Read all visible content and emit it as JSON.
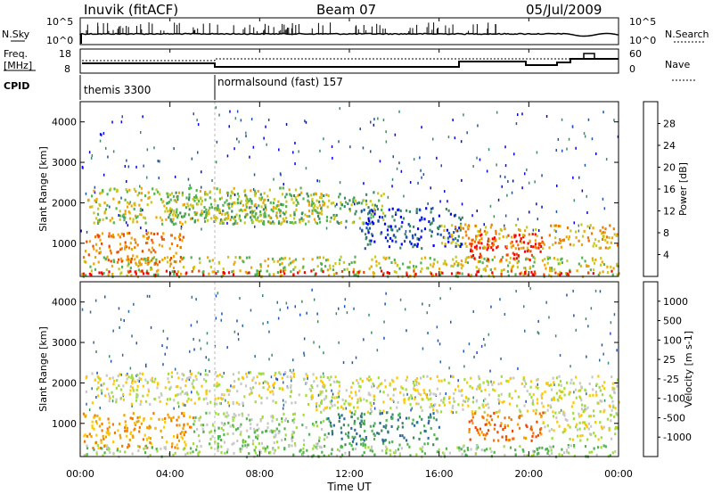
{
  "header": {
    "station": "Inuvik (fitACF)",
    "beam": "Beam 07",
    "date": "05/Jul/2009"
  },
  "strips": {
    "nsky": {
      "label": "N.Sky",
      "ticks": [
        "10^5",
        "10^0"
      ]
    },
    "nsearch": {
      "label": "N.Search",
      "ticks": [
        "10^5",
        "10^0"
      ]
    },
    "freq": {
      "label_top": "Freq.",
      "label_bottom": "[MHz]",
      "ticks": [
        "18",
        "8"
      ]
    },
    "nave": {
      "label": "Nave",
      "ticks": [
        "60",
        "0"
      ]
    },
    "cpid": {
      "label": "CPID",
      "modes": [
        "themis 3300",
        "normalsound (fast) 157"
      ],
      "mode_change_hour": 6.0
    }
  },
  "time_axis": {
    "label": "Time UT",
    "ticks": [
      "00:00",
      "04:00",
      "08:00",
      "12:00",
      "16:00",
      "20:00",
      "00:00"
    ],
    "hours": [
      0,
      4,
      8,
      12,
      16,
      20,
      24
    ]
  },
  "chart_data": [
    {
      "type": "heatmap",
      "name": "power",
      "ylabel": "Slant Range [km]",
      "yticks": [
        1000,
        2000,
        3000,
        4000
      ],
      "ylim": [
        180,
        4500
      ],
      "xlim": [
        0,
        24
      ],
      "colorbar": {
        "label": "Power [dB]",
        "tick_labels": [
          "4",
          "8",
          "12",
          "16",
          "20",
          "24",
          "28"
        ],
        "colors": [
          "#0000ff",
          "#1e50a8",
          "#3c8a64",
          "#50b450",
          "#c8c81e",
          "#f0a500",
          "#f07800",
          "#f04600",
          "#ff0000"
        ]
      },
      "regions": [
        {
          "t0": 0.0,
          "t1": 24.0,
          "r0": 200,
          "r1": 700,
          "level": 4
        },
        {
          "t0": 0.1,
          "t1": 4.6,
          "r0": 500,
          "r1": 1300,
          "level": 6
        },
        {
          "t0": 0.3,
          "t1": 11.0,
          "r0": 1500,
          "r1": 2400,
          "level": 4
        },
        {
          "t0": 3.8,
          "t1": 13.5,
          "r0": 1500,
          "r1": 2300,
          "level": 3
        },
        {
          "t0": 0.0,
          "t1": 24.0,
          "r0": 250,
          "r1": 350,
          "level": 8
        },
        {
          "t0": 17.3,
          "t1": 20.6,
          "r0": 600,
          "r1": 1300,
          "level": 8
        },
        {
          "t0": 12.5,
          "t1": 17.0,
          "r0": 900,
          "r1": 1900,
          "level": 1
        },
        {
          "t0": 16.0,
          "t1": 24.0,
          "r0": 900,
          "r1": 1500,
          "level": 5
        }
      ]
    },
    {
      "type": "heatmap",
      "name": "velocity",
      "ylabel": "Slant Range [km]",
      "yticks": [
        1000,
        2000,
        3000,
        4000
      ],
      "ylim": [
        180,
        4500
      ],
      "xlim": [
        0,
        24
      ],
      "colorbar": {
        "label": "Velocity [m s-1]",
        "tick_labels": [
          "1000",
          "500",
          "100",
          "25",
          "-25",
          "-100",
          "-500",
          "-1000"
        ],
        "colors": [
          "#1e50c8",
          "#2a6aa0",
          "#3c8a64",
          "#50b450",
          "#a0dc3c",
          "#c8c8c8",
          "#ffc800",
          "#f0a000",
          "#f07800",
          "#f04600",
          "#ff0000"
        ]
      },
      "regions": [
        {
          "t0": 0.2,
          "t1": 10.5,
          "r0": 1500,
          "r1": 2300,
          "level": 5
        },
        {
          "t0": 10.5,
          "t1": 24.0,
          "r0": 1300,
          "r1": 2200,
          "level": 5
        },
        {
          "t0": 0.1,
          "t1": 5.0,
          "r0": 400,
          "r1": 1300,
          "level": 7
        },
        {
          "t0": 5.0,
          "t1": 11.0,
          "r0": 400,
          "r1": 1300,
          "level": 4
        },
        {
          "t0": 11.0,
          "t1": 16.0,
          "r0": 500,
          "r1": 1300,
          "level": 2
        },
        {
          "t0": 17.3,
          "t1": 20.6,
          "r0": 600,
          "r1": 1300,
          "level": 8
        },
        {
          "t0": 0.0,
          "t1": 24.0,
          "r0": 200,
          "r1": 500,
          "level": 4
        },
        {
          "t0": 20.6,
          "t1": 24.0,
          "r0": 600,
          "r1": 1300,
          "level": 5
        }
      ]
    }
  ]
}
